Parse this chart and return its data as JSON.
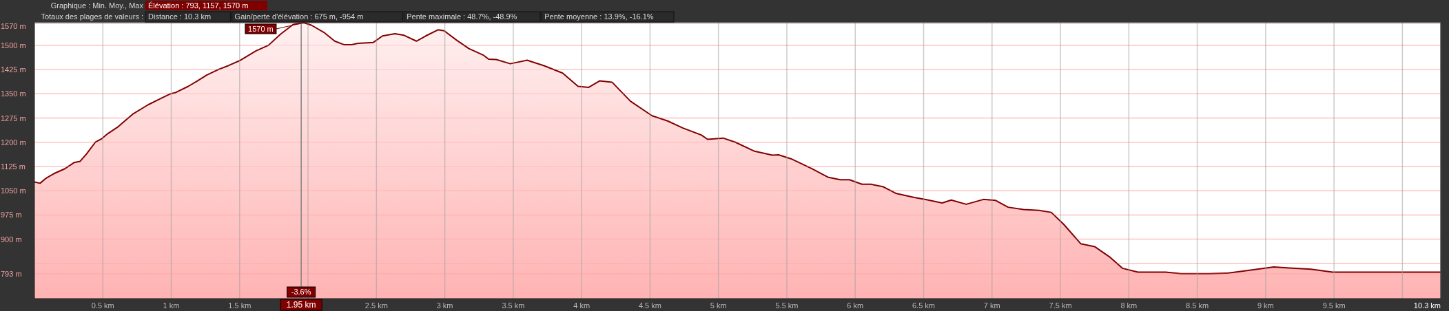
{
  "chart_data": {
    "type": "area",
    "title": "Graphique : Min. Moy., Max",
    "x": [
      0,
      0.041,
      0.086,
      0.143,
      0.222,
      0.289,
      0.334,
      0.379,
      0.447,
      0.492,
      0.537,
      0.605,
      0.718,
      0.831,
      0.921,
      0.988,
      1.033,
      1.124,
      1.191,
      1.259,
      1.349,
      1.417,
      1.507,
      1.62,
      1.71,
      1.8,
      1.89,
      1.969,
      2.026,
      2.116,
      2.195,
      2.262,
      2.319,
      2.364,
      2.477,
      2.544,
      2.635,
      2.702,
      2.792,
      2.86,
      2.95,
      2.995,
      3.086,
      3.176,
      3.284,
      3.32,
      3.376,
      3.478,
      3.601,
      3.725,
      3.861,
      3.974,
      4.052,
      4.131,
      4.222,
      4.357,
      4.515,
      4.628,
      4.741,
      4.876,
      4.921,
      5.034,
      5.124,
      5.259,
      5.394,
      5.439,
      5.53,
      5.688,
      5.8,
      5.891,
      5.958,
      6.049,
      6.116,
      6.206,
      6.296,
      6.432,
      6.522,
      6.635,
      6.702,
      6.811,
      6.937,
      7.027,
      7.117,
      7.23,
      7.343,
      7.433,
      7.524,
      7.648,
      7.75,
      7.863,
      7.953,
      8.066,
      8.269,
      8.382,
      8.585,
      8.721,
      8.902,
      9.06,
      9.173,
      9.331,
      9.489,
      10.28
    ],
    "series": [
      {
        "color": "#800000",
        "values": [
          1077,
          1073,
          1089,
          1103,
          1118,
          1137,
          1141,
          1163,
          1201,
          1211,
          1227,
          1246,
          1287,
          1316,
          1335,
          1349,
          1354,
          1373,
          1390,
          1408,
          1426,
          1437,
          1454,
          1483,
          1500,
          1535,
          1564,
          1570,
          1562,
          1540,
          1513,
          1502,
          1502,
          1506,
          1509,
          1529,
          1536,
          1531,
          1513,
          1529,
          1548,
          1545,
          1516,
          1490,
          1469,
          1457,
          1456,
          1443,
          1454,
          1437,
          1414,
          1373,
          1370,
          1390,
          1386,
          1327,
          1282,
          1266,
          1244,
          1222,
          1209,
          1213,
          1200,
          1173,
          1160,
          1161,
          1149,
          1117,
          1092,
          1084,
          1084,
          1070,
          1070,
          1062,
          1042,
          1029,
          1022,
          1012,
          1021,
          1008,
          1023,
          1020,
          999,
          992,
          989,
          983,
          946,
          886,
          877,
          844,
          810,
          798,
          798,
          793,
          793,
          795,
          805,
          814,
          811,
          807,
          798,
          798
        ]
      }
    ],
    "xlim": [
      0,
      10.28
    ],
    "xticks": [
      {
        "value": 0.5,
        "label": "0.5 km"
      },
      {
        "value": 1,
        "label": "1 km"
      },
      {
        "value": 1.5,
        "label": "1.5 km"
      },
      {
        "value": 2,
        "label": null
      },
      {
        "value": 2.5,
        "label": "2.5 km"
      },
      {
        "value": 3,
        "label": "3 km"
      },
      {
        "value": 3.5,
        "label": "3.5 km"
      },
      {
        "value": 4,
        "label": "4 km"
      },
      {
        "value": 4.5,
        "label": "4.5 km"
      },
      {
        "value": 5,
        "label": "5 km"
      },
      {
        "value": 5.5,
        "label": "5.5 km"
      },
      {
        "value": 6,
        "label": "6 km"
      },
      {
        "value": 6.5,
        "label": "6.5 km"
      },
      {
        "value": 7,
        "label": "7 km"
      },
      {
        "value": 7.5,
        "label": "7.5 km"
      },
      {
        "value": 8,
        "label": "8 km"
      },
      {
        "value": 8.5,
        "label": "8.5 km"
      },
      {
        "value": 9,
        "label": "9 km"
      },
      {
        "value": 9.5,
        "label": "9.5 km"
      },
      {
        "value": 10,
        "label": null
      },
      {
        "value": 10.28,
        "label": "10.3 km"
      }
    ],
    "ylim": [
      716,
      1570
    ],
    "yticks": [
      {
        "value": 793,
        "label": "793 m"
      },
      {
        "value": 825,
        "label": null
      },
      {
        "value": 900,
        "label": "900 m"
      },
      {
        "value": 975,
        "label": "975 m"
      },
      {
        "value": 1050,
        "label": "1050 m"
      },
      {
        "value": 1125,
        "label": "1125 m"
      },
      {
        "value": 1200,
        "label": "1200 m"
      },
      {
        "value": 1275,
        "label": "1275 m"
      },
      {
        "value": 1350,
        "label": "1350 m"
      },
      {
        "value": 1425,
        "label": "1425 m"
      },
      {
        "value": 1500,
        "label": "1500 m"
      },
      {
        "value": 1570,
        "label": "1570 m"
      }
    ],
    "grid": true,
    "ref_lines": [
      {
        "axis": "x",
        "value": 1.95,
        "label": "1.95 km",
        "color": "#808080"
      }
    ],
    "annotations": [
      "Élévation : 793, 1157, 1570 m",
      "Totaux des plages de valeurs :",
      "Distance : 10.3 km",
      "Gain/perte d'élévation : 675 m, -954 m",
      "Pente maximale : 48.7%, -48.9%",
      "Pente moyenne : 13.9%, -16.1%",
      {
        "text": "1570 m",
        "x": 1.969,
        "y": 1570
      },
      {
        "text": "-3.6%",
        "x": 1.95
      }
    ]
  }
}
